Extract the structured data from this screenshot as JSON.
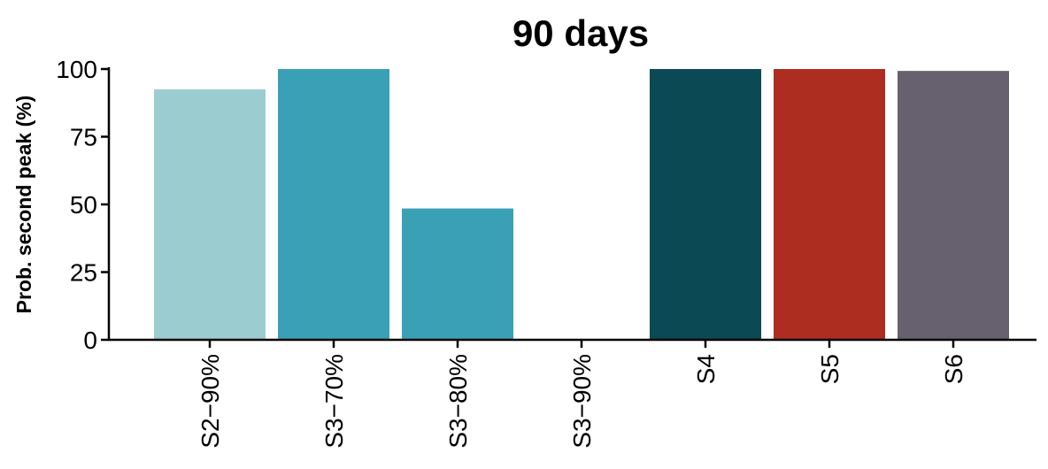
{
  "chart_data": {
    "type": "bar",
    "title": "90 days",
    "xlabel": "",
    "ylabel": "Prob. second peak (%)",
    "ylim": [
      0,
      100
    ],
    "yticks": [
      0,
      25,
      50,
      75,
      100
    ],
    "grid": false,
    "categories": [
      "S2−90%",
      "S3−70%",
      "S3−80%",
      "S3−90%",
      "S4",
      "S5",
      "S6"
    ],
    "values": [
      92.5,
      100,
      48.5,
      0,
      100,
      100,
      99.3
    ],
    "colors": [
      "#9BCDD0",
      "#3AA0B5",
      "#3AA0B5",
      "#3AA0B5",
      "#0B4A55",
      "#AD2D20",
      "#67606F"
    ]
  }
}
